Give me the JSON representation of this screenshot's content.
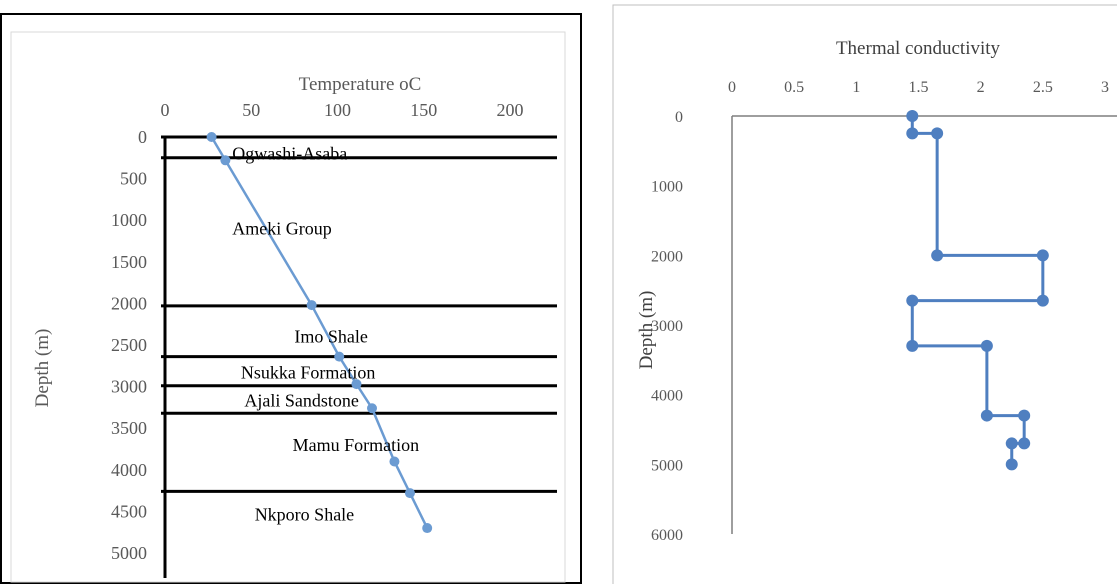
{
  "chart_data": [
    {
      "type": "line",
      "title": "Temperature oC",
      "xlabel": "",
      "ylabel": "Depth (m)",
      "x_axis_position": "top",
      "y_reversed": true,
      "xlim": [
        0,
        200
      ],
      "ylim": [
        0,
        5000
      ],
      "x_ticks": [
        0,
        50,
        100,
        150,
        200
      ],
      "y_ticks": [
        0,
        500,
        1000,
        1500,
        2000,
        2500,
        3000,
        3500,
        4000,
        4500,
        5000
      ],
      "grid": false,
      "color": "#6b9bd2",
      "series": [
        {
          "x": [
            27,
            35,
            85,
            101,
            111,
            120,
            133,
            142,
            152
          ],
          "y": [
            0,
            280,
            2020,
            2640,
            2970,
            3260,
            3900,
            4280,
            4700
          ]
        }
      ],
      "boundaries": [
        0,
        250,
        2030,
        2640,
        2990,
        3320,
        4260
      ],
      "formations": [
        {
          "label": "Ogwashi-Asaba",
          "depth": 200,
          "x": 39
        },
        {
          "label": "Ameki Group",
          "depth": 1100,
          "x": 39
        },
        {
          "label": "Imo Shale",
          "depth": 2400,
          "x": 75
        },
        {
          "label": "Nsukka Formation",
          "depth": 2830,
          "x": 44
        },
        {
          "label": "Ajali Sandstone",
          "depth": 3170,
          "x": 46
        },
        {
          "label": "Mamu Formation",
          "depth": 3700,
          "x": 74
        },
        {
          "label": "Nkporo Shale",
          "depth": 4540,
          "x": 52
        }
      ]
    },
    {
      "type": "line",
      "title": "Thermal conductivity",
      "xlabel": "",
      "ylabel": "Depth (m)",
      "x_axis_position": "top",
      "y_reversed": true,
      "xlim": [
        0,
        3
      ],
      "ylim": [
        0,
        6000
      ],
      "x_ticks": [
        0,
        0.5,
        1,
        1.5,
        2,
        2.5,
        3
      ],
      "y_ticks": [
        0,
        1000,
        2000,
        3000,
        4000,
        5000,
        6000
      ],
      "grid": false,
      "color": "#4f7fc0",
      "series": [
        {
          "x": [
            1.45,
            1.45,
            1.65,
            1.65,
            2.5,
            2.5,
            1.45,
            1.45,
            2.05,
            2.05,
            2.35,
            2.35,
            2.25,
            2.25
          ],
          "y": [
            0,
            250,
            250,
            2000,
            2000,
            2650,
            2650,
            3300,
            3300,
            4300,
            4300,
            4700,
            4700,
            5000
          ]
        }
      ]
    }
  ]
}
